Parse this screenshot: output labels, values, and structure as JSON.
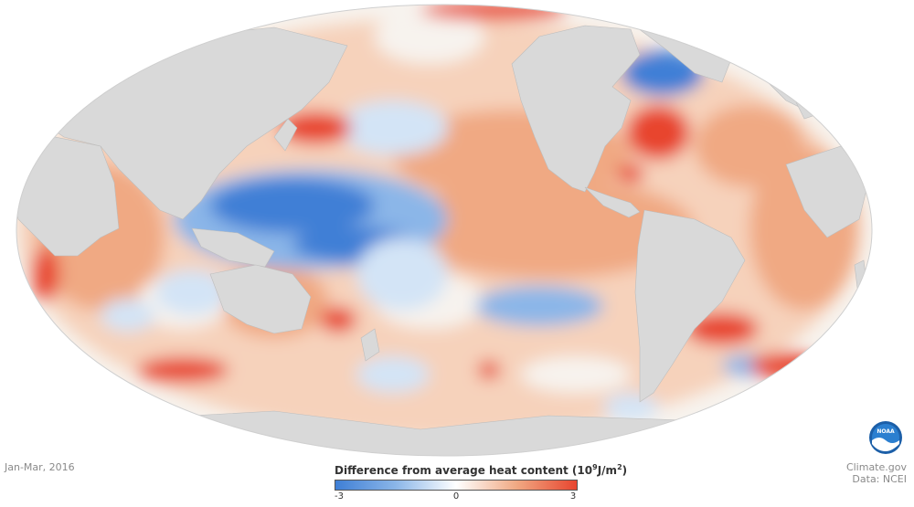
{
  "map": {
    "date": "Jan-Mar, 2016",
    "colors": {
      "land": "#d9d9d9",
      "ocean_neutral": "#f7f3ee",
      "cold_strong": "#3f7fd6",
      "cold_mid": "#8bb6e8",
      "cold_light": "#d3e4f6",
      "warm_light": "#f6d2bb",
      "warm_mid": "#f0a983",
      "warm_strong": "#e8452f",
      "coast": "#bdbdbd"
    }
  },
  "legend": {
    "title_prefix": "Difference from average heat content (10",
    "title_exp": "9",
    "title_unit": "J/m",
    "title_exp2": "2",
    "title_suffix": ")",
    "min_label": "-3",
    "mid_label": "0",
    "max_label": "3",
    "min_value": -3,
    "max_value": 3
  },
  "credits": {
    "site": "Climate.gov",
    "data": "Data: NCEI",
    "logo_text": "NOAA"
  }
}
